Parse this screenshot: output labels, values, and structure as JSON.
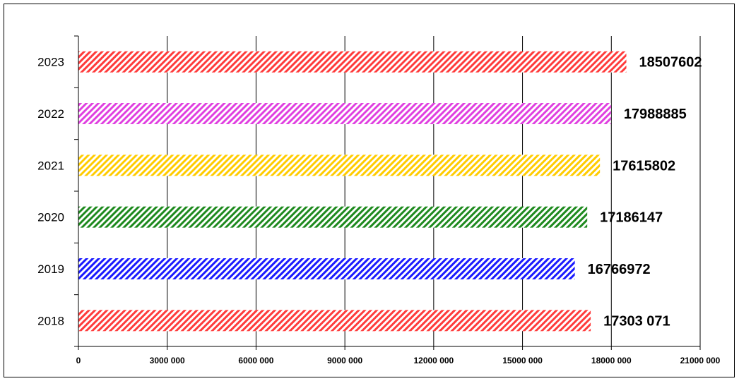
{
  "chart_data": {
    "type": "bar",
    "orientation": "horizontal",
    "title": "",
    "xlabel": "",
    "ylabel": "",
    "categories": [
      "2018",
      "2019",
      "2020",
      "2021",
      "2022",
      "2023"
    ],
    "values": [
      17303071,
      16766972,
      17186147,
      17615802,
      17988885,
      18507602
    ],
    "data_labels": [
      "17303 071",
      "16766972",
      "17186147",
      "17615802",
      "17988885",
      "18507602"
    ],
    "colors": [
      "#ff3b3b",
      "#1a1aff",
      "#1e8a1e",
      "#ffcc00",
      "#e040e0",
      "#ff3b3b"
    ],
    "fill_pattern": "diagonal-hatch",
    "xlim": [
      0,
      21000000
    ],
    "x_ticks": [
      0,
      3000000,
      6000000,
      9000000,
      12000000,
      15000000,
      18000000,
      21000000
    ],
    "x_tick_labels": [
      "0",
      "3000 000",
      "6000 000",
      "9000 000",
      "12000 000",
      "15000 000",
      "18000 000",
      "21000 000"
    ],
    "grid": "vertical",
    "legend": "none"
  }
}
